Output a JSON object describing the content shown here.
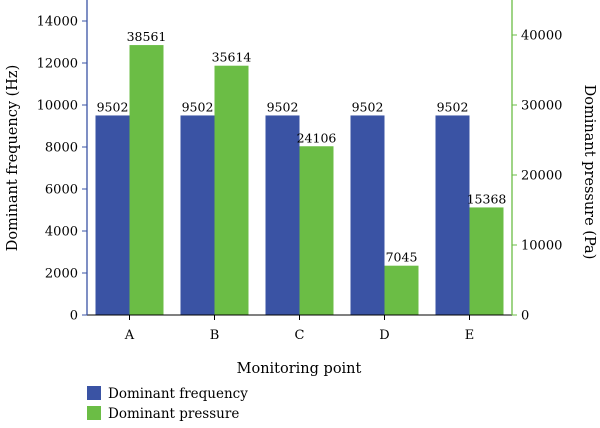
{
  "chart_data": {
    "type": "bar",
    "categories": [
      "A",
      "B",
      "C",
      "D",
      "E"
    ],
    "series": [
      {
        "name": "Dominant frequency",
        "axis": "left",
        "color": "#3a53a4",
        "values": [
          9502,
          9502,
          9502,
          9502,
          9502
        ]
      },
      {
        "name": "Dominant pressure",
        "axis": "right",
        "color": "#6bbd45",
        "values": [
          38561,
          35614,
          24106,
          7045,
          15368
        ]
      }
    ],
    "xlabel": "Monitoring point",
    "ylabel_left": "Dominant frequency (Hz)",
    "ylabel_right": "Dominant pressure (Pa)",
    "ylim_left": [
      0,
      15000
    ],
    "ylim_right": [
      0,
      45000
    ],
    "yticks_left": [
      0,
      2000,
      4000,
      6000,
      8000,
      10000,
      12000,
      14000
    ],
    "yticks_right": [
      0,
      10000,
      20000,
      30000,
      40000
    ],
    "left_axis_color": "#3a53a4",
    "right_axis_color": "#6bbd45",
    "grid": false,
    "legend_position": "bottom-left"
  }
}
